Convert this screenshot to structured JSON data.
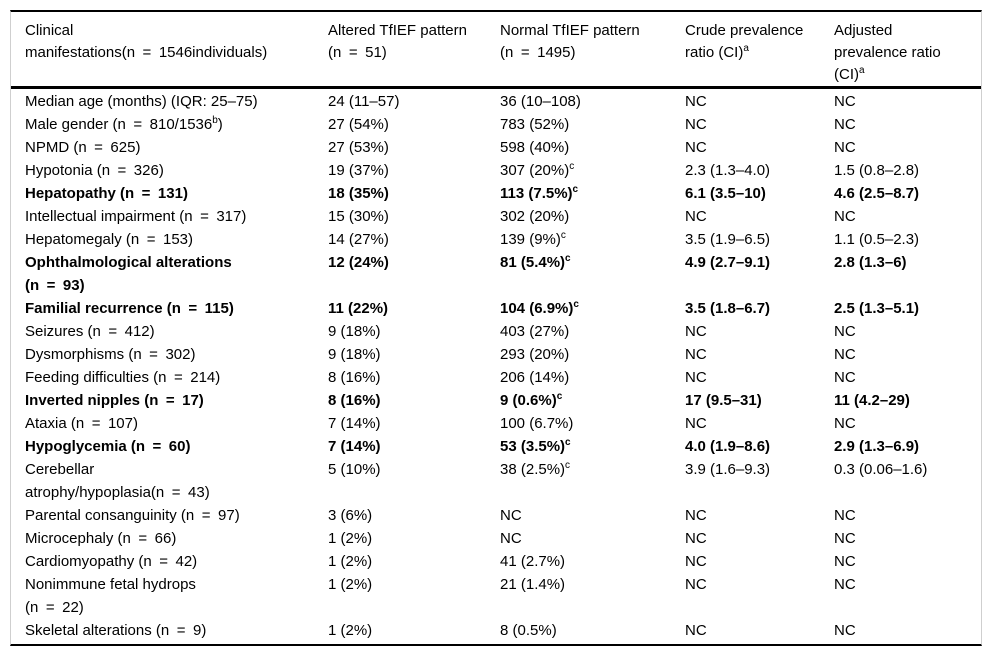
{
  "table": {
    "columns": [
      {
        "label": "Clinical\nmanifestations(n = 1546individuals)"
      },
      {
        "label": "Altered TfIEF pattern\n(n = 51)"
      },
      {
        "label": "Normal TfIEF pattern\n(n = 1495)"
      },
      {
        "label": "Crude prevalence\nratio (CI)^{a}"
      },
      {
        "label": "Adjusted\nprevalence ratio\n(CI)^{a}"
      }
    ],
    "rows": [
      {
        "label": "Median age (months) (IQR: 25–75)",
        "altered": "24 (11–57)",
        "normal": "36 (10–108)",
        "crude": "NC",
        "adjusted": "NC",
        "bold": false
      },
      {
        "label": "Male gender (n = 810/1536^{b})",
        "altered": "27 (54%)",
        "normal": "783 (52%)",
        "crude": "NC",
        "adjusted": "NC",
        "bold": false
      },
      {
        "label": "NPMD (n = 625)",
        "altered": "27 (53%)",
        "normal": "598 (40%)",
        "crude": "NC",
        "adjusted": "NC",
        "bold": false
      },
      {
        "label": "Hypotonia (n = 326)",
        "altered": "19 (37%)",
        "normal": "307 (20%)^{c}",
        "crude": "2.3 (1.3–4.0)",
        "adjusted": "1.5 (0.8–2.8)",
        "bold": false
      },
      {
        "label": "Hepatopathy (n = 131)",
        "altered": "18 (35%)",
        "normal": "113 (7.5%)^{c}",
        "crude": "6.1 (3.5–10)",
        "adjusted": "4.6 (2.5–8.7)",
        "bold": true
      },
      {
        "label": "Intellectual impairment (n = 317)",
        "altered": "15 (30%)",
        "normal": "302 (20%)",
        "crude": "NC",
        "adjusted": "NC",
        "bold": false
      },
      {
        "label": "Hepatomegaly (n = 153)",
        "altered": "14 (27%)",
        "normal": "139 (9%)^{c}",
        "crude": "3.5 (1.9–6.5)",
        "adjusted": "1.1 (0.5–2.3)",
        "bold": false
      },
      {
        "label": "Ophthalmological alterations\n(n = 93)",
        "altered": "12 (24%)",
        "normal": "81 (5.4%)^{c}",
        "crude": "4.9 (2.7–9.1)",
        "adjusted": "2.8 (1.3–6)",
        "bold": true
      },
      {
        "label": "Familial recurrence (n = 115)",
        "altered": "11 (22%)",
        "normal": "104 (6.9%)^{c}",
        "crude": "3.5 (1.8–6.7)",
        "adjusted": "2.5 (1.3–5.1)",
        "bold": true
      },
      {
        "label": "Seizures (n = 412)",
        "altered": "9 (18%)",
        "normal": "403 (27%)",
        "crude": "NC",
        "adjusted": "NC",
        "bold": false
      },
      {
        "label": "Dysmorphisms (n = 302)",
        "altered": "9 (18%)",
        "normal": "293 (20%)",
        "crude": "NC",
        "adjusted": "NC",
        "bold": false
      },
      {
        "label": "Feeding difficulties (n = 214)",
        "altered": "8 (16%)",
        "normal": "206 (14%)",
        "crude": "NC",
        "adjusted": "NC",
        "bold": false
      },
      {
        "label": "Inverted nipples (n = 17)",
        "altered": "8 (16%)",
        "normal": "9 (0.6%)^{c}",
        "crude": "17 (9.5–31)",
        "adjusted": "11 (4.2–29)",
        "bold": true
      },
      {
        "label": "Ataxia (n = 107)",
        "altered": "7 (14%)",
        "normal": "100 (6.7%)",
        "crude": "NC",
        "adjusted": "NC",
        "bold": false
      },
      {
        "label": "Hypoglycemia (n = 60)",
        "altered": "7 (14%)",
        "normal": "53 (3.5%)^{c}",
        "crude": "4.0 (1.9–8.6)",
        "adjusted": "2.9 (1.3–6.9)",
        "bold": true
      },
      {
        "label": "Cerebellar\natrophy/hypoplasia(n = 43)",
        "altered": "5 (10%)",
        "normal": "38 (2.5%)^{c}",
        "crude": "3.9 (1.6–9.3)",
        "adjusted": "0.3 (0.06–1.6)",
        "bold": false
      },
      {
        "label": "Parental consanguinity (n = 97)",
        "altered": "3 (6%)",
        "normal": "NC",
        "crude": "NC",
        "adjusted": "NC",
        "bold": false
      },
      {
        "label": "Microcephaly (n = 66)",
        "altered": "1 (2%)",
        "normal": "NC",
        "crude": "NC",
        "adjusted": "NC",
        "bold": false
      },
      {
        "label": "Cardiomyopathy (n = 42)",
        "altered": "1 (2%)",
        "normal": "41 (2.7%)",
        "crude": "NC",
        "adjusted": "NC",
        "bold": false
      },
      {
        "label": "Nonimmune fetal hydrops\n(n = 22)",
        "altered": "1 (2%)",
        "normal": "21 (1.4%)",
        "crude": "NC",
        "adjusted": "NC",
        "bold": false
      },
      {
        "label": "Skeletal alterations (n = 9)",
        "altered": "1 (2%)",
        "normal": "8 (0.5%)",
        "crude": "NC",
        "adjusted": "NC",
        "bold": false
      }
    ]
  }
}
